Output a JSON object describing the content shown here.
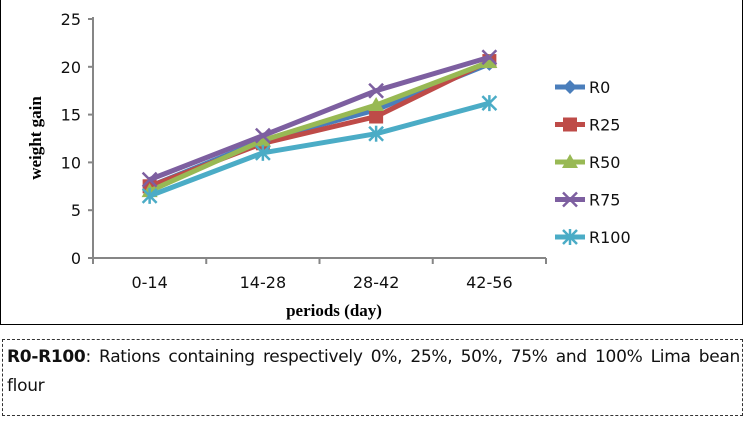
{
  "chart_data": {
    "type": "line",
    "title": "",
    "xlabel": "periods (day)",
    "ylabel": "weight gain",
    "categories": [
      "0-14",
      "14-28",
      "28-42",
      "42-56"
    ],
    "ylim": [
      0,
      25
    ],
    "yticks": [
      0,
      5,
      10,
      15,
      20,
      25
    ],
    "grid": false,
    "legend": "right",
    "series": [
      {
        "name": "R0",
        "values": [
          7.5,
          12.3,
          15.5,
          20.3
        ],
        "color": "#4a7ebb",
        "marker": "diamond"
      },
      {
        "name": "R25",
        "values": [
          7.5,
          12.0,
          14.8,
          20.6
        ],
        "color": "#be4b48",
        "marker": "square"
      },
      {
        "name": "R50",
        "values": [
          7.0,
          12.3,
          16.0,
          20.5
        ],
        "color": "#98b954",
        "marker": "triangle"
      },
      {
        "name": "R75",
        "values": [
          8.2,
          12.8,
          17.5,
          21.0
        ],
        "color": "#7d5fa0",
        "marker": "x"
      },
      {
        "name": "R100",
        "values": [
          6.5,
          11.0,
          13.0,
          16.2
        ],
        "color": "#4bacc6",
        "marker": "star"
      }
    ]
  },
  "note": {
    "bold": "R0-R100",
    "text": ": Rations containing respectively 0%, 25%, 50%, 75% and 100% Lima bean flour"
  }
}
